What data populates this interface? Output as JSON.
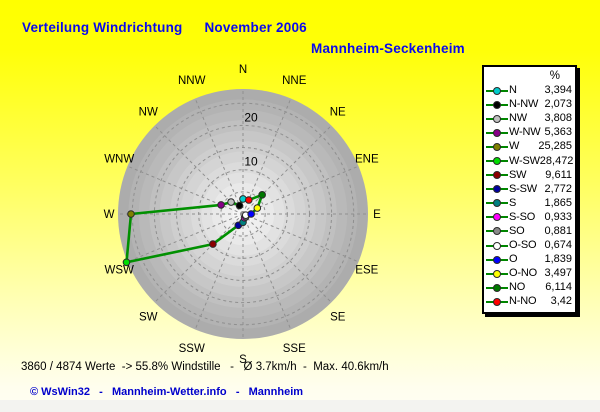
{
  "header": {
    "title": "Verteilung Windrichtung",
    "period": "November 2006",
    "station": "Mannheim-Seckenheim"
  },
  "chart_data": {
    "type": "radar-polar-wind-rose",
    "unit": "%",
    "ring_values": [
      5,
      10,
      15,
      20,
      25
    ],
    "ring_labels": [
      "10",
      "20"
    ],
    "axis_max": 28.2,
    "line_color": "#009000",
    "grid_color": "#8f8f8f",
    "compass_labels": [
      "N",
      "NNE",
      "NE",
      "ENE",
      "E",
      "ESE",
      "SE",
      "SSE",
      "S",
      "SSW",
      "SW",
      "WSW",
      "W",
      "WNW",
      "NW",
      "NNW"
    ],
    "directions": [
      {
        "legend": "N",
        "value": 3.394,
        "display": "3,394",
        "color": "#00cccc"
      },
      {
        "legend": "N-NW",
        "value": 2.073,
        "display": "2,073",
        "color": "#000000"
      },
      {
        "legend": "NW",
        "value": 3.808,
        "display": "3,808",
        "color": "#c0c0c0"
      },
      {
        "legend": "W-NW",
        "value": 5.363,
        "display": "5,363",
        "color": "#880088"
      },
      {
        "legend": "W",
        "value": 25.285,
        "display": "25,285",
        "color": "#808000"
      },
      {
        "legend": "W-SW",
        "value": 28.472,
        "display": "28,472",
        "color": "#00dd00"
      },
      {
        "legend": "SW",
        "value": 9.611,
        "display": "9,611",
        "color": "#8b0000"
      },
      {
        "legend": "S-SW",
        "value": 2.772,
        "display": "2,772",
        "color": "#0000a0"
      },
      {
        "legend": "S",
        "value": 1.865,
        "display": "1,865",
        "color": "#008080"
      },
      {
        "legend": "S-SO",
        "value": 0.933,
        "display": "0,933",
        "color": "#ff00ff"
      },
      {
        "legend": "SO",
        "value": 0.881,
        "display": "0,881",
        "color": "#8a8a8a"
      },
      {
        "legend": "O-SO",
        "value": 0.674,
        "display": "0,674",
        "color": "#ffffff"
      },
      {
        "legend": "O",
        "value": 1.839,
        "display": "1,839",
        "color": "#0000ff"
      },
      {
        "legend": "O-NO",
        "value": 3.497,
        "display": "3,497",
        "color": "#ffff00"
      },
      {
        "legend": "NO",
        "value": 6.114,
        "display": "6,114",
        "color": "#007800"
      },
      {
        "legend": "N-NO",
        "value": 3.42,
        "display": "3,42",
        "color": "#ff0000"
      }
    ]
  },
  "legend": {
    "header": "%"
  },
  "status": {
    "text": "3860 / 4874 Werte  -> 55.8% Windstille   -   Ø 3.7km/h  -  Max. 40.6km/h"
  },
  "footer": {
    "text": "© WsWin32   -   Mannheim-Wetter.info   -   Mannheim"
  }
}
